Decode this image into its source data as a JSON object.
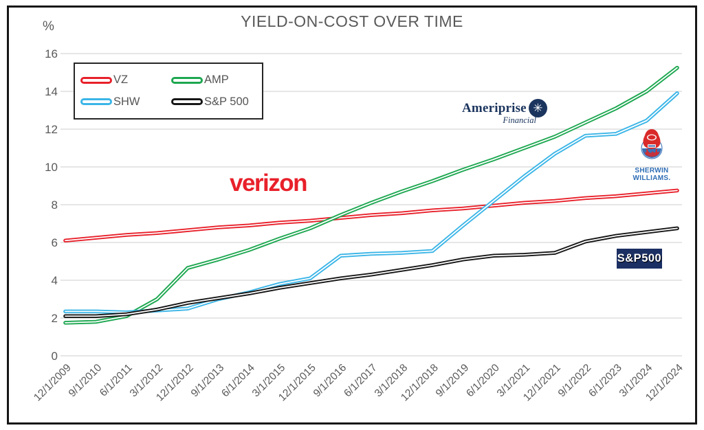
{
  "title": "YIELD-ON-COST OVER TIME",
  "y_axis_unit": "%",
  "colors": {
    "grid": "#d8d8d8",
    "axis_text": "#595959",
    "title_text": "#595959",
    "legend_text": "#555555",
    "verizon_red": "#e8202a",
    "verizon_check_yellow": "#fdb515",
    "ameriprise_navy": "#1b355e",
    "sherwin_blue": "#2e6db5",
    "sp500_badge_navy": "#1b2f63"
  },
  "chart_data": {
    "type": "line",
    "title": "YIELD-ON-COST OVER TIME",
    "xlabel": "",
    "ylabel": "%",
    "ylim": [
      0,
      16
    ],
    "y_tick_step": 2,
    "grid": true,
    "legend_position": "top-left",
    "categories": [
      "12/1/2009",
      "9/1/2010",
      "6/1/2011",
      "3/1/2012",
      "12/1/2012",
      "9/1/2013",
      "6/1/2014",
      "3/1/2015",
      "12/1/2015",
      "9/1/2016",
      "6/1/2017",
      "3/1/2018",
      "12/1/2018",
      "9/1/2019",
      "6/1/2020",
      "3/1/2021",
      "12/1/2021",
      "9/1/2022",
      "6/1/2023",
      "3/1/2024",
      "12/1/2024"
    ],
    "series": [
      {
        "name": "VZ",
        "color": "#e8202a",
        "values": [
          6.1,
          6.25,
          6.4,
          6.5,
          6.65,
          6.8,
          6.9,
          7.05,
          7.15,
          7.3,
          7.45,
          7.55,
          7.7,
          7.8,
          7.95,
          8.1,
          8.2,
          8.35,
          8.45,
          8.6,
          8.75
        ]
      },
      {
        "name": "AMP",
        "color": "#1da750",
        "values": [
          1.75,
          1.8,
          2.1,
          3.0,
          4.65,
          5.1,
          5.6,
          6.2,
          6.75,
          7.45,
          8.1,
          8.7,
          9.25,
          9.85,
          10.4,
          11.0,
          11.6,
          12.35,
          13.1,
          14.0,
          15.25
        ]
      },
      {
        "name": "SHW",
        "color": "#3ab5e7",
        "values": [
          2.35,
          2.35,
          2.3,
          2.4,
          2.5,
          3.0,
          3.35,
          3.8,
          4.1,
          5.3,
          5.4,
          5.45,
          5.55,
          6.9,
          8.2,
          9.5,
          10.7,
          11.65,
          11.75,
          12.45,
          13.9
        ]
      },
      {
        "name": "S&P 500",
        "color": "#161616",
        "values": [
          2.1,
          2.1,
          2.2,
          2.45,
          2.8,
          3.05,
          3.3,
          3.6,
          3.85,
          4.1,
          4.3,
          4.55,
          4.8,
          5.1,
          5.3,
          5.35,
          5.45,
          6.05,
          6.35,
          6.55,
          6.75
        ]
      }
    ]
  },
  "annotations": {
    "verizon": {
      "text": "verizon",
      "check": "✓"
    },
    "ameriprise": {
      "name": "Ameriprise",
      "star": "✳",
      "financial": "Financial"
    },
    "sherwin": {
      "line1": "SHERWIN",
      "line2": "WILLIAMS."
    },
    "sp500": {
      "text": "S&P500"
    }
  }
}
